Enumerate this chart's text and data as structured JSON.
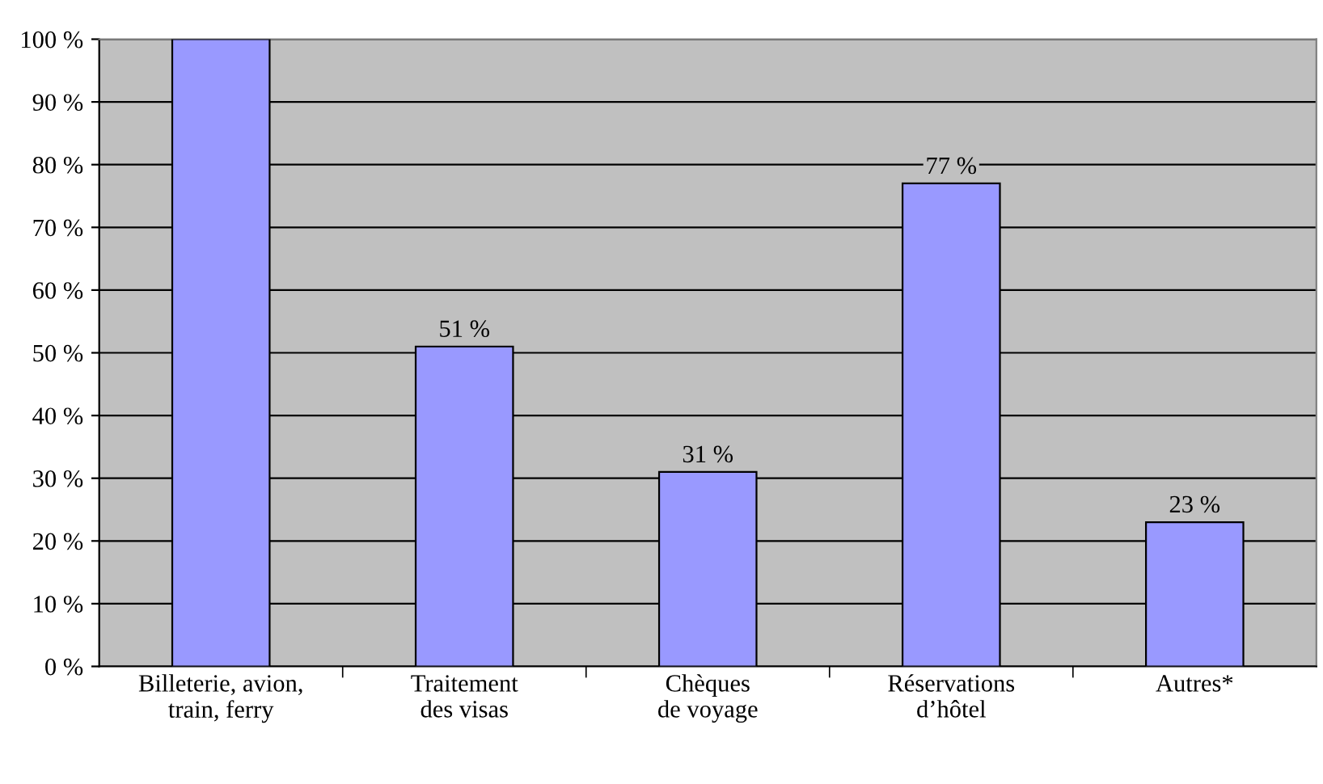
{
  "chart_data": {
    "type": "bar",
    "categories": [
      "Billeterie, avion,\ntrain, ferry",
      "Traitement\ndes visas",
      "Chèques\nde voyage",
      "Réservations\nd’hôtel",
      "Autres*"
    ],
    "values": [
      100,
      51,
      31,
      77,
      23
    ],
    "value_labels": [
      null,
      "51 %",
      "31 %",
      "77 %",
      "23 %"
    ],
    "color": "#9999ff",
    "ylim": [
      0,
      100
    ],
    "yticks": [
      {
        "value": 0,
        "label": "0 %"
      },
      {
        "value": 10,
        "label": "10 %"
      },
      {
        "value": 20,
        "label": "20 %"
      },
      {
        "value": 30,
        "label": "30 %"
      },
      {
        "value": 40,
        "label": "40 %"
      },
      {
        "value": 50,
        "label": "50 %"
      },
      {
        "value": 60,
        "label": "60 %"
      },
      {
        "value": 70,
        "label": "70 %"
      },
      {
        "value": 80,
        "label": "80 %"
      },
      {
        "value": 90,
        "label": "90 %"
      },
      {
        "value": 100,
        "label": "100 %"
      }
    ],
    "grid": "y"
  }
}
